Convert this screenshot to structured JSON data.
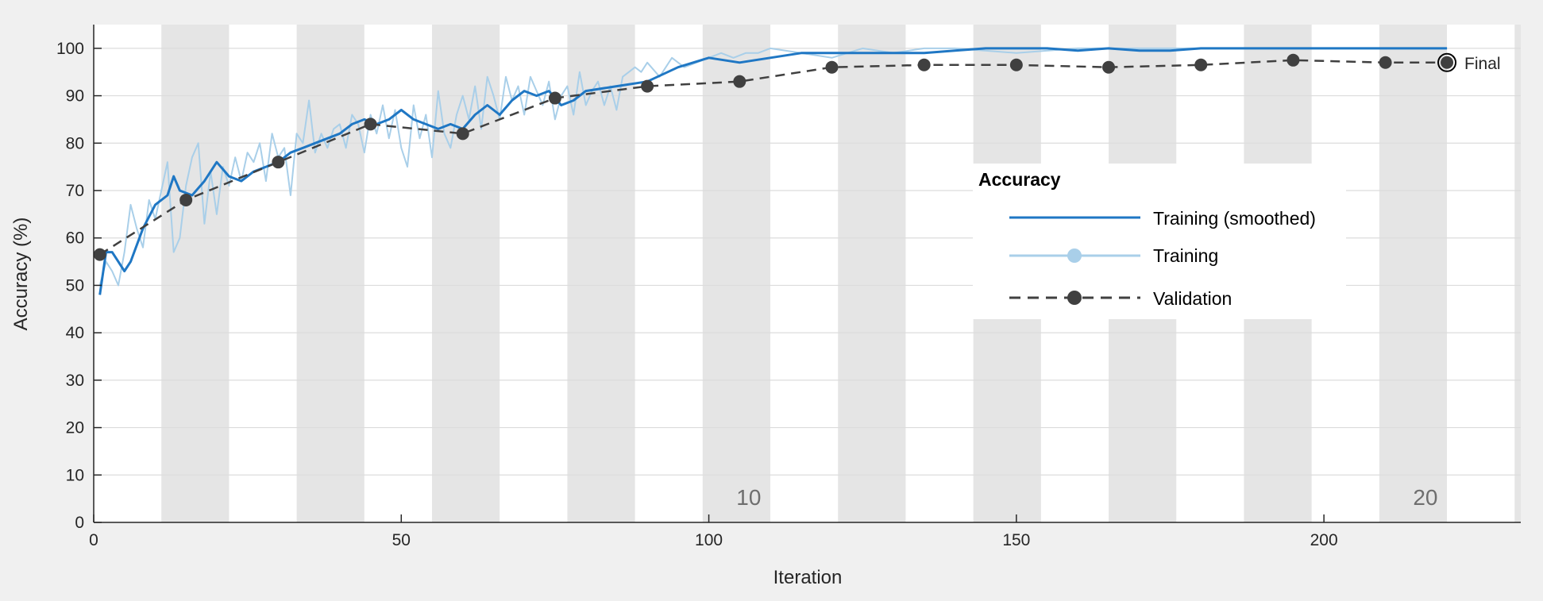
{
  "chart_data": {
    "type": "line",
    "xlabel": "Iteration",
    "ylabel": "Accuracy (%)",
    "xlim": [
      0,
      232
    ],
    "ylim": [
      0,
      105
    ],
    "xticks": [
      0,
      50,
      100,
      150,
      200
    ],
    "yticks": [
      0,
      10,
      20,
      30,
      40,
      50,
      60,
      70,
      80,
      90,
      100
    ],
    "grid": true,
    "epoch_iterations": 11,
    "epoch_labels": [
      {
        "epoch": "10",
        "x": 105
      },
      {
        "epoch": "20",
        "x": 215
      }
    ],
    "legend": {
      "title": "Accuracy",
      "position": "right-center",
      "entries": [
        "Training (smoothed)",
        "Training",
        "Validation"
      ]
    },
    "final_marker": {
      "label": "Final",
      "x": 220,
      "y": 97
    },
    "colors": {
      "smoothed": "#1f77c4",
      "training": "#a9cfe9",
      "validation": "#404040",
      "epoch_band": "#e5e5e5",
      "grid": "#dcdcdc",
      "axis": "#262626"
    },
    "series": [
      {
        "name": "Training (smoothed)",
        "x": [
          1,
          2,
          3,
          4,
          5,
          6,
          8,
          10,
          12,
          13,
          14,
          16,
          18,
          20,
          22,
          24,
          26,
          28,
          30,
          32,
          34,
          36,
          38,
          40,
          42,
          44,
          46,
          48,
          50,
          52,
          54,
          56,
          58,
          60,
          62,
          64,
          66,
          68,
          70,
          72,
          74,
          76,
          78,
          80,
          85,
          90,
          95,
          100,
          105,
          110,
          115,
          120,
          125,
          130,
          135,
          140,
          145,
          150,
          155,
          160,
          165,
          170,
          175,
          180,
          185,
          190,
          200,
          210,
          220
        ],
        "y": [
          48,
          57,
          57,
          55,
          53,
          55,
          62,
          67,
          69,
          73,
          70,
          69,
          72,
          76,
          73,
          72,
          74,
          75,
          76,
          78,
          79,
          80,
          81,
          82,
          84,
          85,
          84,
          85,
          87,
          85,
          84,
          83,
          84,
          83,
          86,
          88,
          86,
          89,
          91,
          90,
          91,
          88,
          89,
          91,
          92,
          93,
          96,
          98,
          97,
          98,
          99,
          99,
          99,
          99,
          99,
          99.5,
          100,
          100,
          100,
          99.5,
          100,
          99.5,
          99.5,
          100,
          100,
          100,
          100,
          100,
          100
        ]
      },
      {
        "name": "Training",
        "x": [
          1,
          2,
          3,
          4,
          5,
          6,
          7,
          8,
          9,
          10,
          11,
          12,
          13,
          14,
          15,
          16,
          17,
          18,
          19,
          20,
          21,
          22,
          23,
          24,
          25,
          26,
          27,
          28,
          29,
          30,
          31,
          32,
          33,
          34,
          35,
          36,
          37,
          38,
          39,
          40,
          41,
          42,
          43,
          44,
          45,
          46,
          47,
          48,
          49,
          50,
          51,
          52,
          53,
          54,
          55,
          56,
          57,
          58,
          59,
          60,
          61,
          62,
          63,
          64,
          65,
          66,
          67,
          68,
          69,
          70,
          71,
          72,
          73,
          74,
          75,
          76,
          77,
          78,
          79,
          80,
          81,
          82,
          83,
          84,
          85,
          86,
          87,
          88,
          89,
          90,
          92,
          94,
          96,
          98,
          100,
          102,
          104,
          106,
          108,
          110,
          115,
          120,
          125,
          130,
          135,
          140,
          150,
          160,
          170,
          180,
          190,
          200,
          210,
          220
        ],
        "y": [
          50,
          55,
          53,
          50,
          57,
          67,
          62,
          58,
          68,
          64,
          70,
          76,
          57,
          60,
          71,
          77,
          80,
          63,
          74,
          65,
          75,
          71,
          77,
          72,
          78,
          76,
          80,
          72,
          82,
          77,
          79,
          69,
          82,
          80,
          89,
          78,
          82,
          79,
          83,
          84,
          79,
          86,
          84,
          78,
          86,
          82,
          88,
          81,
          87,
          79,
          75,
          88,
          81,
          86,
          77,
          91,
          82,
          79,
          86,
          90,
          85,
          92,
          83,
          94,
          90,
          85,
          94,
          89,
          92,
          86,
          94,
          91,
          88,
          93,
          85,
          90,
          92,
          86,
          95,
          88,
          91,
          93,
          88,
          92,
          87,
          94,
          95,
          96,
          95,
          97,
          94,
          98,
          96,
          97,
          98,
          99,
          98,
          99,
          99,
          100,
          99,
          98,
          100,
          99,
          100,
          100,
          99,
          100,
          100,
          100,
          100,
          100,
          100,
          100
        ]
      },
      {
        "name": "Validation",
        "x": [
          1,
          15,
          30,
          45,
          60,
          75,
          90,
          105,
          120,
          135,
          150,
          165,
          180,
          195,
          210,
          220
        ],
        "y": [
          56.5,
          68,
          76,
          84,
          82,
          89.5,
          92,
          93,
          96,
          96.5,
          96.5,
          96,
          96.5,
          97.5,
          97,
          97
        ]
      }
    ]
  }
}
